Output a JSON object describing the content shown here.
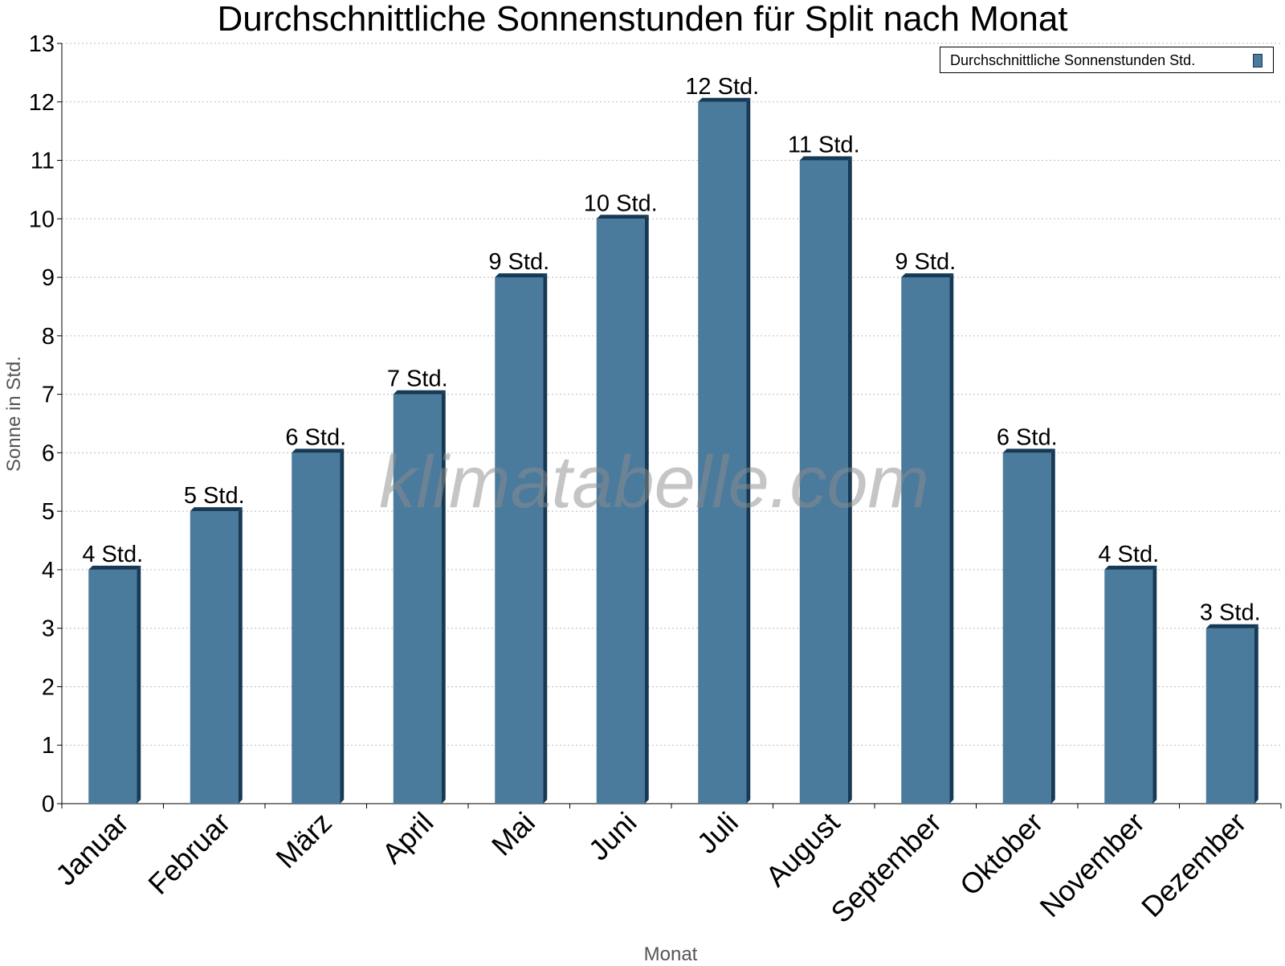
{
  "chart_data": {
    "type": "bar",
    "title": "Durchschnittliche Sonnenstunden für Split nach Monat",
    "xlabel": "Monat",
    "ylabel": "Sonne in Std.",
    "ylim": [
      0,
      13
    ],
    "yticks": [
      0,
      1,
      2,
      3,
      4,
      5,
      6,
      7,
      8,
      9,
      10,
      11,
      12,
      13
    ],
    "grid": true,
    "legend_position": "top-right",
    "categories": [
      "Januar",
      "Februar",
      "März",
      "April",
      "Mai",
      "Juni",
      "Juli",
      "August",
      "September",
      "Oktober",
      "November",
      "Dezember"
    ],
    "series": [
      {
        "name": "Durchschnittliche Sonnenstunden Std.",
        "values": [
          4,
          5,
          6,
          7,
          9,
          10,
          12,
          11,
          9,
          6,
          4,
          3
        ],
        "data_labels": [
          "4 Std.",
          "5 Std.",
          "6 Std.",
          "7 Std.",
          "9 Std.",
          "10 Std.",
          "12 Std.",
          "11 Std.",
          "9 Std.",
          "6 Std.",
          "4 Std.",
          "3 Std."
        ],
        "color": "#4a7a9c",
        "edge_color": "#163a56"
      }
    ]
  },
  "watermark": "klimatabelle.com"
}
